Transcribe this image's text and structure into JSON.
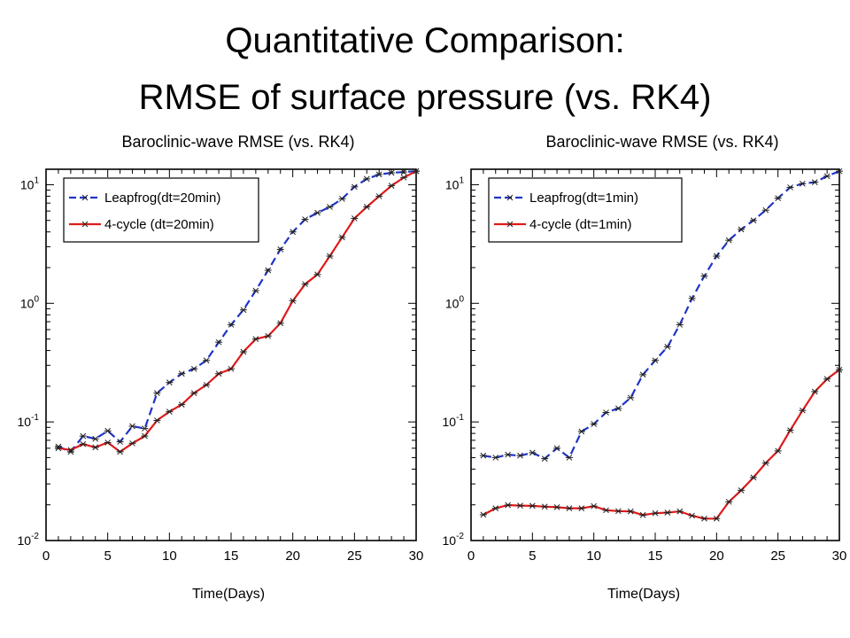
{
  "slide": {
    "title_line1": "Quantitative Comparison:",
    "title_line2": "RMSE of surface pressure (vs. RK4)"
  },
  "colors": {
    "leapfrog": "#1f35c8",
    "four_cycle": "#e01a1a",
    "axis": "#000000"
  },
  "chart_data": [
    {
      "type": "line",
      "title": "Baroclinic-wave RMSE (vs. RK4)",
      "xlabel": "Time(Days)",
      "ylabel": "",
      "xlim": [
        0,
        30
      ],
      "ylim": [
        0.01,
        13.5
      ],
      "yscale": "log",
      "xticks": [
        "0",
        "5",
        "10",
        "15",
        "20",
        "25",
        "30"
      ],
      "yticks": [
        {
          "base": "10",
          "exp": "-2",
          "value": 0.01
        },
        {
          "base": "10",
          "exp": "-1",
          "value": 0.1
        },
        {
          "base": "10",
          "exp": "0",
          "value": 1
        },
        {
          "base": "10",
          "exp": "1",
          "value": 10
        }
      ],
      "legend_position": "top-left",
      "x": [
        1,
        2,
        3,
        4,
        5,
        6,
        7,
        8,
        9,
        10,
        11,
        12,
        13,
        14,
        15,
        16,
        17,
        18,
        19,
        20,
        21,
        22,
        23,
        24,
        25,
        26,
        27,
        28,
        29,
        30
      ],
      "series": [
        {
          "name": "Leapfrog(dt=20min)",
          "style": "dashed",
          "values": [
            0.062,
            0.056,
            0.076,
            0.072,
            0.084,
            0.068,
            0.092,
            0.088,
            0.175,
            0.215,
            0.255,
            0.28,
            0.33,
            0.47,
            0.66,
            0.88,
            1.28,
            1.9,
            2.85,
            4.0,
            5.1,
            5.8,
            6.5,
            7.6,
            9.6,
            11.2,
            12.2,
            12.6,
            12.8,
            13.0
          ]
        },
        {
          "name": "4-cycle (dt=20min)",
          "style": "solid",
          "values": [
            0.06,
            0.058,
            0.065,
            0.061,
            0.067,
            0.056,
            0.066,
            0.076,
            0.103,
            0.122,
            0.14,
            0.175,
            0.205,
            0.255,
            0.28,
            0.39,
            0.5,
            0.53,
            0.68,
            1.05,
            1.45,
            1.75,
            2.5,
            3.6,
            5.2,
            6.5,
            8.0,
            9.8,
            11.5,
            13.0
          ]
        }
      ]
    },
    {
      "type": "line",
      "title": "Baroclinic-wave RMSE (vs. RK4)",
      "xlabel": "Time(Days)",
      "ylabel": "",
      "xlim": [
        0,
        30
      ],
      "ylim": [
        0.01,
        13.5
      ],
      "yscale": "log",
      "xticks": [
        "0",
        "5",
        "10",
        "15",
        "20",
        "25",
        "30"
      ],
      "yticks": [
        {
          "base": "10",
          "exp": "-2",
          "value": 0.01
        },
        {
          "base": "10",
          "exp": "-1",
          "value": 0.1
        },
        {
          "base": "10",
          "exp": "0",
          "value": 1
        },
        {
          "base": "10",
          "exp": "1",
          "value": 10
        }
      ],
      "legend_position": "top-left",
      "x": [
        1,
        2,
        3,
        4,
        5,
        6,
        7,
        8,
        9,
        10,
        11,
        12,
        13,
        14,
        15,
        16,
        17,
        18,
        19,
        20,
        21,
        22,
        23,
        24,
        25,
        26,
        27,
        28,
        29,
        30
      ],
      "series": [
        {
          "name": "Leapfrog(dt=1min)",
          "style": "dashed",
          "values": [
            0.052,
            0.05,
            0.053,
            0.052,
            0.055,
            0.049,
            0.06,
            0.05,
            0.083,
            0.096,
            0.12,
            0.13,
            0.16,
            0.25,
            0.33,
            0.43,
            0.66,
            1.1,
            1.7,
            2.5,
            3.4,
            4.2,
            5.0,
            6.1,
            7.7,
            9.5,
            10.2,
            10.5,
            11.8,
            13.0
          ]
        },
        {
          "name": "4-cycle (dt=1min)",
          "style": "solid",
          "values": [
            0.0165,
            0.0187,
            0.0199,
            0.0197,
            0.0196,
            0.0193,
            0.0191,
            0.0187,
            0.0187,
            0.0195,
            0.018,
            0.0177,
            0.0176,
            0.0164,
            0.017,
            0.0172,
            0.0176,
            0.0162,
            0.0153,
            0.0153,
            0.0212,
            0.0265,
            0.034,
            0.045,
            0.057,
            0.085,
            0.125,
            0.18,
            0.23,
            0.275
          ]
        }
      ]
    }
  ]
}
